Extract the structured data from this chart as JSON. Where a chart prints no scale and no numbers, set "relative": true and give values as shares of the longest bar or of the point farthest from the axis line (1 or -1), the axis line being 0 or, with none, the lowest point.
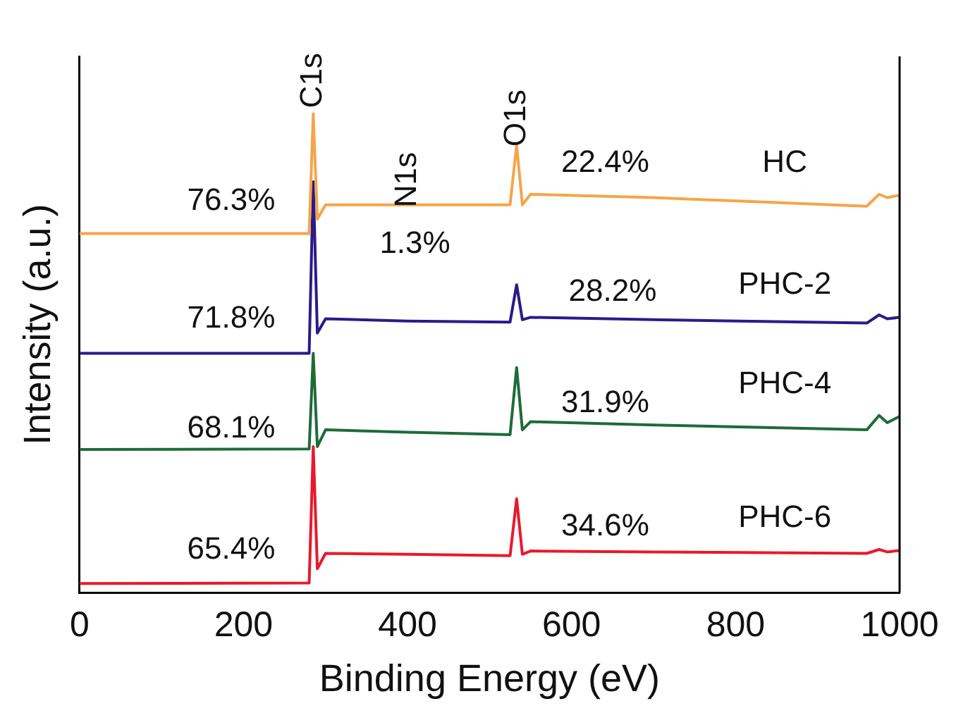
{
  "chart_data": {
    "type": "line",
    "relative": true,
    "xlabel": "Binding Energy (eV)",
    "ylabel": "Intensity (a.u.)",
    "xlim": [
      0,
      1000
    ],
    "xticks": [
      0,
      200,
      400,
      600,
      800,
      1000
    ],
    "grid": false,
    "legend": false,
    "marker": "none",
    "line_style": "solid",
    "x": [
      0,
      280,
      285,
      290,
      300,
      400,
      525,
      533,
      540,
      550,
      700,
      960,
      975,
      985,
      1000
    ],
    "series": [
      {
        "name": "HC",
        "color": "#f5a54a",
        "values": [
          0.75,
          0.75,
          1.0,
          0.78,
          0.81,
          0.81,
          0.81,
          0.935,
          0.81,
          0.832,
          0.825,
          0.807,
          0.832,
          0.825,
          0.83
        ]
      },
      {
        "name": "PHC-2",
        "color": "#2b1a8a",
        "values": [
          0.5,
          0.5,
          0.858,
          0.542,
          0.572,
          0.567,
          0.565,
          0.643,
          0.57,
          0.575,
          0.57,
          0.563,
          0.58,
          0.572,
          0.575
        ]
      },
      {
        "name": "PHC-4",
        "color": "#1e6b3a",
        "values": [
          0.299,
          0.3,
          0.5,
          0.305,
          0.34,
          0.335,
          0.33,
          0.47,
          0.34,
          0.357,
          0.35,
          0.34,
          0.37,
          0.355,
          0.368
        ]
      },
      {
        "name": "PHC-6",
        "color": "#e8192c",
        "values": [
          0.019,
          0.02,
          0.305,
          0.05,
          0.082,
          0.08,
          0.077,
          0.196,
          0.08,
          0.087,
          0.085,
          0.082,
          0.09,
          0.085,
          0.088
        ]
      }
    ],
    "annotations": [
      "C1s",
      "N1s",
      "O1s",
      "76.3%",
      "22.4%",
      "1.3%",
      "71.8%",
      "28.2%",
      "68.1%",
      "31.9%",
      "65.4%",
      "34.6%"
    ]
  }
}
